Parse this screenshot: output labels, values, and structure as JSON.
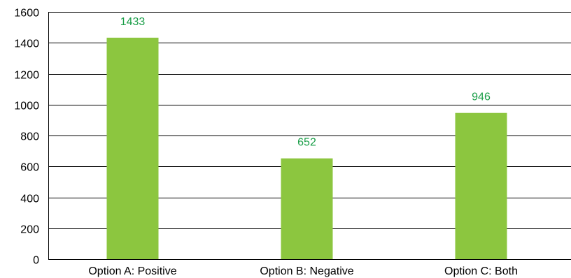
{
  "chart_data": {
    "type": "bar",
    "categories": [
      "Option A: Positive",
      "Option B: Negative",
      "Option C: Both"
    ],
    "values": [
      1433,
      652,
      946
    ],
    "data_labels": [
      "1433",
      "652",
      "946"
    ],
    "title": "",
    "xlabel": "",
    "ylabel": "",
    "ylim": [
      0,
      1600
    ],
    "y_ticks": [
      0,
      200,
      400,
      600,
      800,
      1000,
      1200,
      1400,
      1600
    ],
    "y_tick_labels": [
      "0",
      "200",
      "400",
      "600",
      "800",
      "1000",
      "1200",
      "1400",
      "1600"
    ],
    "grid": "horizontal",
    "legend": "none",
    "colors": {
      "bar": "#8cc63f",
      "data_label": "#1a9e48",
      "grid": "#000000",
      "text": "#000000"
    }
  }
}
